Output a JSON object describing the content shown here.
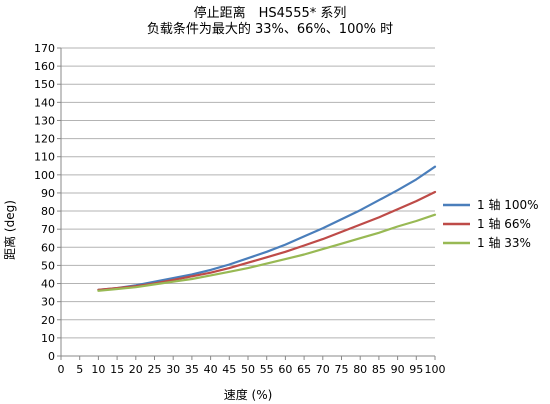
{
  "chart_data": {
    "type": "line",
    "title": "停止距离　HS4555* 系列",
    "subtitle": "负载条件为最大的 33%、66%、100% 时",
    "xlabel": "速度 (%)",
    "ylabel": "距离 (deg)",
    "xlim": [
      0,
      100
    ],
    "ylim": [
      0,
      170
    ],
    "xticks": [
      0,
      5,
      10,
      15,
      20,
      25,
      30,
      35,
      40,
      45,
      50,
      55,
      60,
      65,
      70,
      75,
      80,
      85,
      90,
      95,
      100
    ],
    "yticks": [
      0,
      10,
      20,
      30,
      40,
      50,
      60,
      70,
      80,
      90,
      100,
      110,
      120,
      130,
      140,
      150,
      160,
      170
    ],
    "grid": "horizontal",
    "legend_position": "right",
    "x": [
      10,
      15,
      20,
      25,
      30,
      35,
      40,
      45,
      50,
      55,
      60,
      65,
      70,
      75,
      80,
      85,
      90,
      95,
      100
    ],
    "series": [
      {
        "name": "1 轴 100%",
        "color": "#4a7ebb",
        "values": [
          36.5,
          37.5,
          39,
          41,
          43,
          45,
          47.5,
          50.5,
          54,
          57.5,
          61.5,
          66,
          70.5,
          75.5,
          80.5,
          86,
          91.5,
          97.5,
          104.5
        ]
      },
      {
        "name": "1 轴 66%",
        "color": "#be4b48",
        "values": [
          36.5,
          37.5,
          38.5,
          40,
          42,
          44,
          46,
          48.5,
          51.5,
          54.5,
          57.5,
          61,
          64.5,
          68.5,
          72.5,
          76.5,
          81,
          85.5,
          90.5
        ]
      },
      {
        "name": "1 轴 33%",
        "color": "#98b954",
        "values": [
          36,
          37,
          38,
          39.5,
          41,
          42.5,
          44.5,
          46.5,
          48.5,
          51,
          53.5,
          56,
          59,
          62,
          65,
          68,
          71.5,
          74.5,
          78
        ]
      }
    ]
  }
}
